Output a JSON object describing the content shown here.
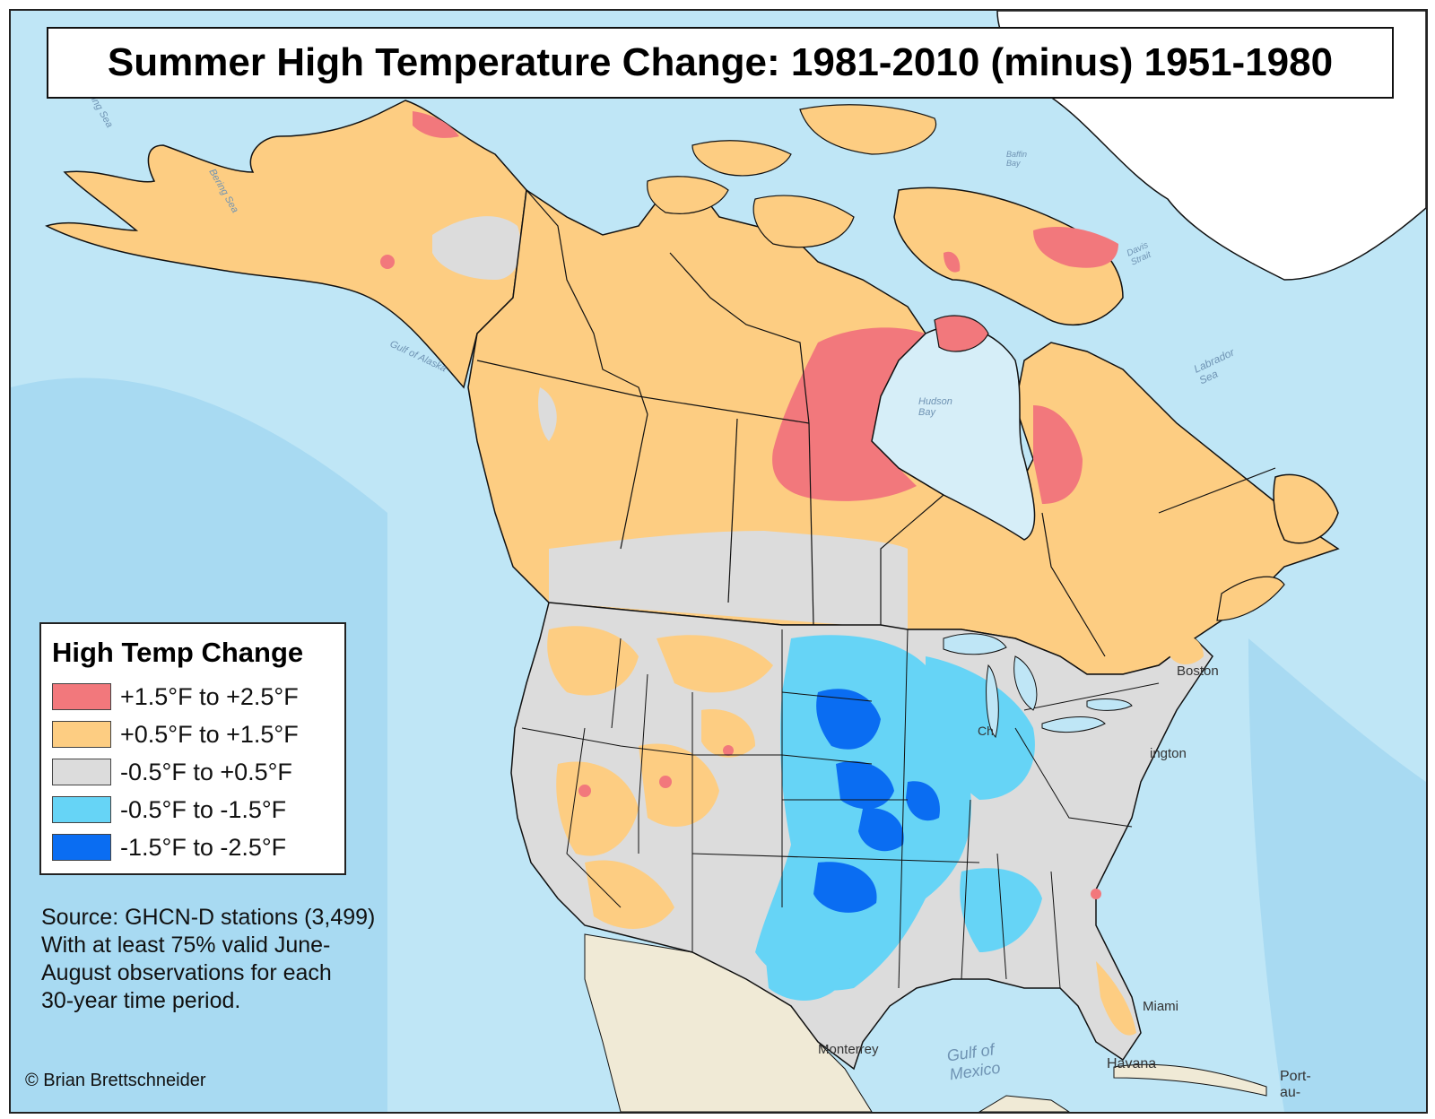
{
  "title": "Summer High Temperature Change: 1981-2010 (minus) 1951-1980",
  "legend": {
    "title": "High Temp Change",
    "items": [
      {
        "label": "+1.5°F to +2.5°F",
        "color": "#f2787c"
      },
      {
        "label": "+0.5°F to +1.5°F",
        "color": "#fdcd82"
      },
      {
        "label": "-0.5°F to +0.5°F",
        "color": "#dcdcdc"
      },
      {
        "label": "-0.5°F to -1.5°F",
        "color": "#66d4f6"
      },
      {
        "label": "-1.5°F to -2.5°F",
        "color": "#0a6df2"
      }
    ]
  },
  "source": {
    "lines": [
      "Source: GHCN-D stations (3,499)",
      "With at least 75% valid June-",
      "August observations for each",
      "30-year time period."
    ]
  },
  "credit": "© Brian Brettschneider",
  "water_labels": {
    "bering_sea_top": "Bering Sea",
    "bering_sea": "Bering Sea",
    "gulf_of_alaska": "Gulf of Alaska",
    "hudson_bay": "Hudson Bay",
    "labrador_sea": "Labrador Sea",
    "davis_strait": "Davis Strait",
    "baffin_bay": "Baffin Bay",
    "gulf_of_mexico": "Gulf of Mexico"
  },
  "city_labels": {
    "boston": "Boston",
    "washington": "ington",
    "chicago": "Ch",
    "miami": "Miami",
    "havana": "Havana",
    "monterrey": "Monterrey",
    "port": "Port-au-"
  },
  "colors": {
    "ocean": "#bfe6f6",
    "ocean_deep": "#9fd6f0",
    "land_other": "#f0ead6",
    "greenland": "#ffffff",
    "border": "#111111"
  }
}
